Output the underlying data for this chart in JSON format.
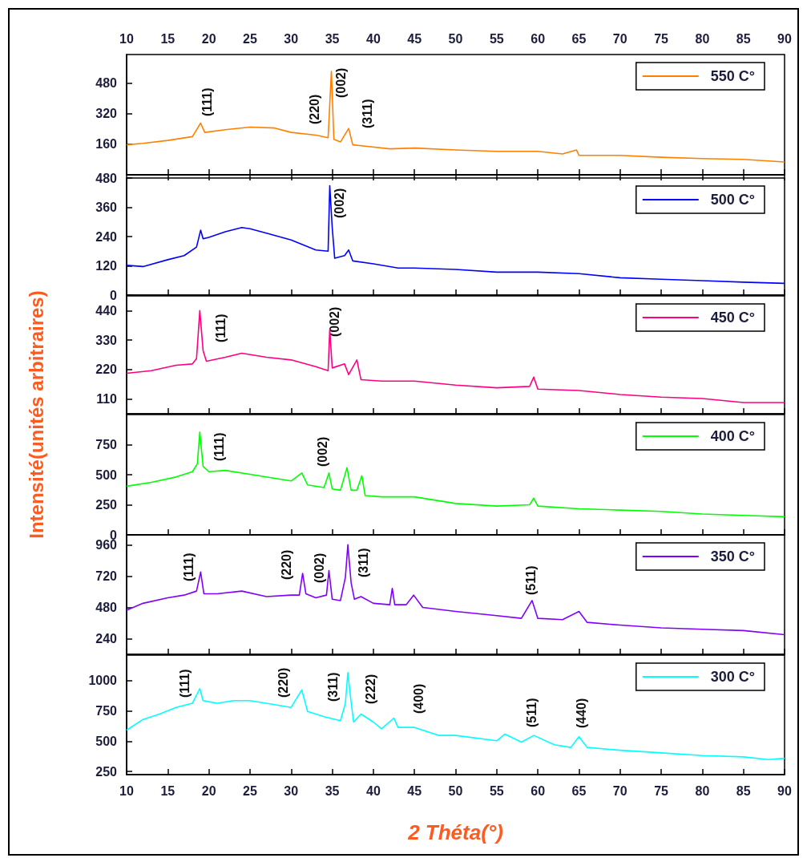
{
  "chart_data": [
    {
      "type": "line",
      "legend": "top right",
      "marker": "none",
      "xlim": [
        10,
        90
      ],
      "xticks": [
        10,
        15,
        20,
        25,
        30,
        35,
        40,
        45,
        50,
        55,
        60,
        65,
        70,
        75,
        80,
        85,
        90
      ],
      "ylim": [
        0,
        630
      ],
      "yticks": [
        {
          "value": 0,
          "label": null
        },
        160,
        320,
        480
      ],
      "x": [
        10,
        12,
        15,
        18,
        19,
        19.5,
        22,
        25,
        28,
        30,
        33,
        34.5,
        34.9,
        35.2,
        36,
        37,
        37.5,
        39,
        42,
        45,
        50,
        55,
        60,
        63,
        64.7,
        65,
        70,
        75,
        80,
        85,
        90
      ],
      "series": [
        {
          "name": "550 C°",
          "color": "#ff8000",
          "values": [
            157,
            165,
            180,
            200,
            271,
            222,
            236,
            250,
            245,
            222,
            208,
            194,
            542,
            186,
            172,
            243,
            157,
            150,
            136,
            140,
            130,
            123,
            123,
            109,
            130,
            102,
            102,
            92,
            85,
            81,
            67
          ]
        }
      ],
      "annotations": [
        "(111)",
        "(220)",
        "(002)",
        "(311)"
      ]
    },
    {
      "type": "line",
      "legend": "top right",
      "marker": "none",
      "tick_labels": "y",
      "xlim": [
        10,
        90
      ],
      "xticks": [
        10,
        15,
        20,
        25,
        30,
        35,
        40,
        45,
        50,
        55,
        60,
        65,
        70,
        75,
        80,
        85,
        90
      ],
      "ylim": [
        0,
        480
      ],
      "yticks": [
        0,
        120,
        240,
        360,
        480
      ],
      "x": [
        10,
        12,
        15,
        17,
        18.5,
        19,
        19.3,
        20,
        22,
        24,
        25,
        27,
        30,
        33,
        34.5,
        34.7,
        35,
        35.3,
        36.5,
        37,
        37.5,
        40,
        43,
        45,
        50,
        55,
        60,
        65,
        70,
        75,
        80,
        85,
        90
      ],
      "series": [
        {
          "name": "500 C°",
          "color": "#0000ff",
          "values": [
            122,
            117,
            145,
            162,
            197,
            266,
            231,
            237,
            260,
            277,
            272,
            254,
            226,
            185,
            180,
            449,
            277,
            151,
            162,
            185,
            140,
            128,
            111,
            111,
            105,
            94,
            94,
            88,
            71,
            65,
            59,
            53,
            48
          ]
        }
      ],
      "annotations": [
        "(002)"
      ]
    },
    {
      "type": "line",
      "legend": "top right",
      "marker": "none",
      "tick_labels": "y",
      "xlim": [
        10,
        90
      ],
      "xticks": [
        10,
        15,
        20,
        25,
        30,
        35,
        40,
        45,
        50,
        55,
        60,
        65,
        70,
        75,
        80,
        85,
        90
      ],
      "ylim": [
        55,
        495
      ],
      "yticks": [
        110,
        220,
        330,
        440
      ],
      "x": [
        10,
        13,
        16,
        18,
        18.5,
        18.9,
        19.3,
        19.7,
        22,
        24,
        27,
        30,
        33,
        34.5,
        34.7,
        35,
        36.5,
        37,
        38,
        38.5,
        41,
        45,
        50,
        55,
        59,
        59.5,
        60,
        65,
        70,
        75,
        80,
        85,
        90
      ],
      "series": [
        {
          "name": "450 C°",
          "color": "#ff0080",
          "values": [
            206,
            216,
            236,
            241,
            261,
            440,
            291,
            251,
            266,
            281,
            266,
            256,
            231,
            216,
            370,
            226,
            241,
            201,
            256,
            182,
            177,
            177,
            162,
            152,
            157,
            192,
            147,
            142,
            127,
            117,
            112,
            97,
            97
          ]
        }
      ],
      "annotations": [
        "(111)",
        "(002)"
      ]
    },
    {
      "type": "line",
      "legend": "top right",
      "marker": "none",
      "tick_labels": "y",
      "ylabel": "Intensité(unités arbitraires)",
      "xlim": [
        10,
        90
      ],
      "xticks": [
        10,
        15,
        20,
        25,
        30,
        35,
        40,
        45,
        50,
        55,
        60,
        65,
        70,
        75,
        80,
        85,
        90
      ],
      "ylim": [
        0,
        1000
      ],
      "yticks": [
        0,
        250,
        500,
        750
      ],
      "x": [
        10,
        13,
        16,
        18,
        18.6,
        18.9,
        19.3,
        20,
        22,
        25,
        28,
        30,
        31.3,
        32,
        34,
        34.6,
        35,
        36,
        36.8,
        37.3,
        38,
        38.6,
        39,
        41,
        45,
        50,
        55,
        59,
        59.5,
        60,
        65,
        70,
        75,
        80,
        85,
        90
      ],
      "series": [
        {
          "name": "400 C°",
          "color": "#00ff00",
          "values": [
            404,
            437,
            481,
            525,
            591,
            855,
            569,
            525,
            536,
            503,
            470,
            448,
            514,
            415,
            393,
            514,
            382,
            371,
            558,
            371,
            371,
            492,
            327,
            316,
            316,
            261,
            239,
            250,
            305,
            239,
            217,
            206,
            195,
            173,
            162,
            151
          ]
        }
      ],
      "annotations": [
        "(111)",
        "(002)"
      ]
    },
    {
      "type": "line",
      "legend": "top right",
      "marker": "none",
      "tick_labels": "y",
      "xlim": [
        10,
        90
      ],
      "xticks": [
        10,
        15,
        20,
        25,
        30,
        35,
        40,
        45,
        50,
        55,
        60,
        65,
        70,
        75,
        80,
        85,
        90
      ],
      "ylim": [
        120,
        1040
      ],
      "yticks": [
        240,
        480,
        720,
        960
      ],
      "x": [
        10,
        12,
        15,
        17,
        18.5,
        19,
        19.4,
        21,
        24,
        27,
        30,
        31,
        31.4,
        31.8,
        33,
        34.3,
        34.6,
        35,
        36,
        36.6,
        36.9,
        37.3,
        37.7,
        38.5,
        40,
        42,
        42.3,
        42.6,
        44,
        44.9,
        46,
        50,
        55,
        58,
        59.3,
        60,
        63,
        65,
        66,
        70,
        75,
        80,
        85,
        90
      ],
      "series": [
        {
          "name": "350 C°",
          "color": "#8000ff",
          "values": [
            460,
            513,
            555,
            576,
            607,
            754,
            586,
            586,
            607,
            565,
            576,
            576,
            744,
            586,
            555,
            576,
            765,
            544,
            534,
            712,
            964,
            670,
            544,
            565,
            513,
            502,
            628,
            502,
            502,
            576,
            481,
            450,
            418,
            397,
            534,
            397,
            387,
            450,
            366,
            345,
            324,
            313,
            303,
            271
          ]
        }
      ],
      "annotations": [
        "(111)",
        "(220)",
        "(002)",
        "(311)",
        "(511)"
      ]
    },
    {
      "type": "line",
      "legend": "top right",
      "marker": "none",
      "xlabel": "2 Théta(°)",
      "xlim": [
        10,
        90
      ],
      "xticks": [
        10,
        15,
        20,
        25,
        30,
        35,
        40,
        45,
        50,
        55,
        60,
        65,
        70,
        75,
        80,
        85,
        90
      ],
      "ylim": [
        225,
        1210
      ],
      "yticks": [
        250,
        500,
        750,
        1000
      ],
      "x": [
        10,
        12,
        14,
        16,
        18,
        18.9,
        19.3,
        21,
        23,
        25,
        28,
        30,
        31.3,
        32,
        34,
        36,
        36.6,
        36.9,
        37.2,
        37.6,
        38.5,
        40,
        41,
        42.5,
        43,
        45,
        48,
        50,
        55,
        56,
        58,
        59.5,
        62,
        64,
        65,
        66,
        70,
        75,
        80,
        85,
        88,
        90
      ],
      "series": [
        {
          "name": "300 C°",
          "color": "#00ffff",
          "values": [
            592,
            680,
            724,
            779,
            813,
            934,
            835,
            813,
            835,
            835,
            802,
            779,
            923,
            746,
            702,
            669,
            813,
            1066,
            879,
            658,
            724,
            658,
            603,
            691,
            614,
            614,
            548,
            548,
            504,
            559,
            493,
            548,
            471,
            449,
            537,
            449,
            426,
            404,
            382,
            371,
            349,
            360
          ]
        }
      ],
      "annotations": [
        "(111)",
        "(220)",
        "(311)",
        "(222)",
        "(400)",
        "(511)",
        "(440)"
      ]
    }
  ]
}
